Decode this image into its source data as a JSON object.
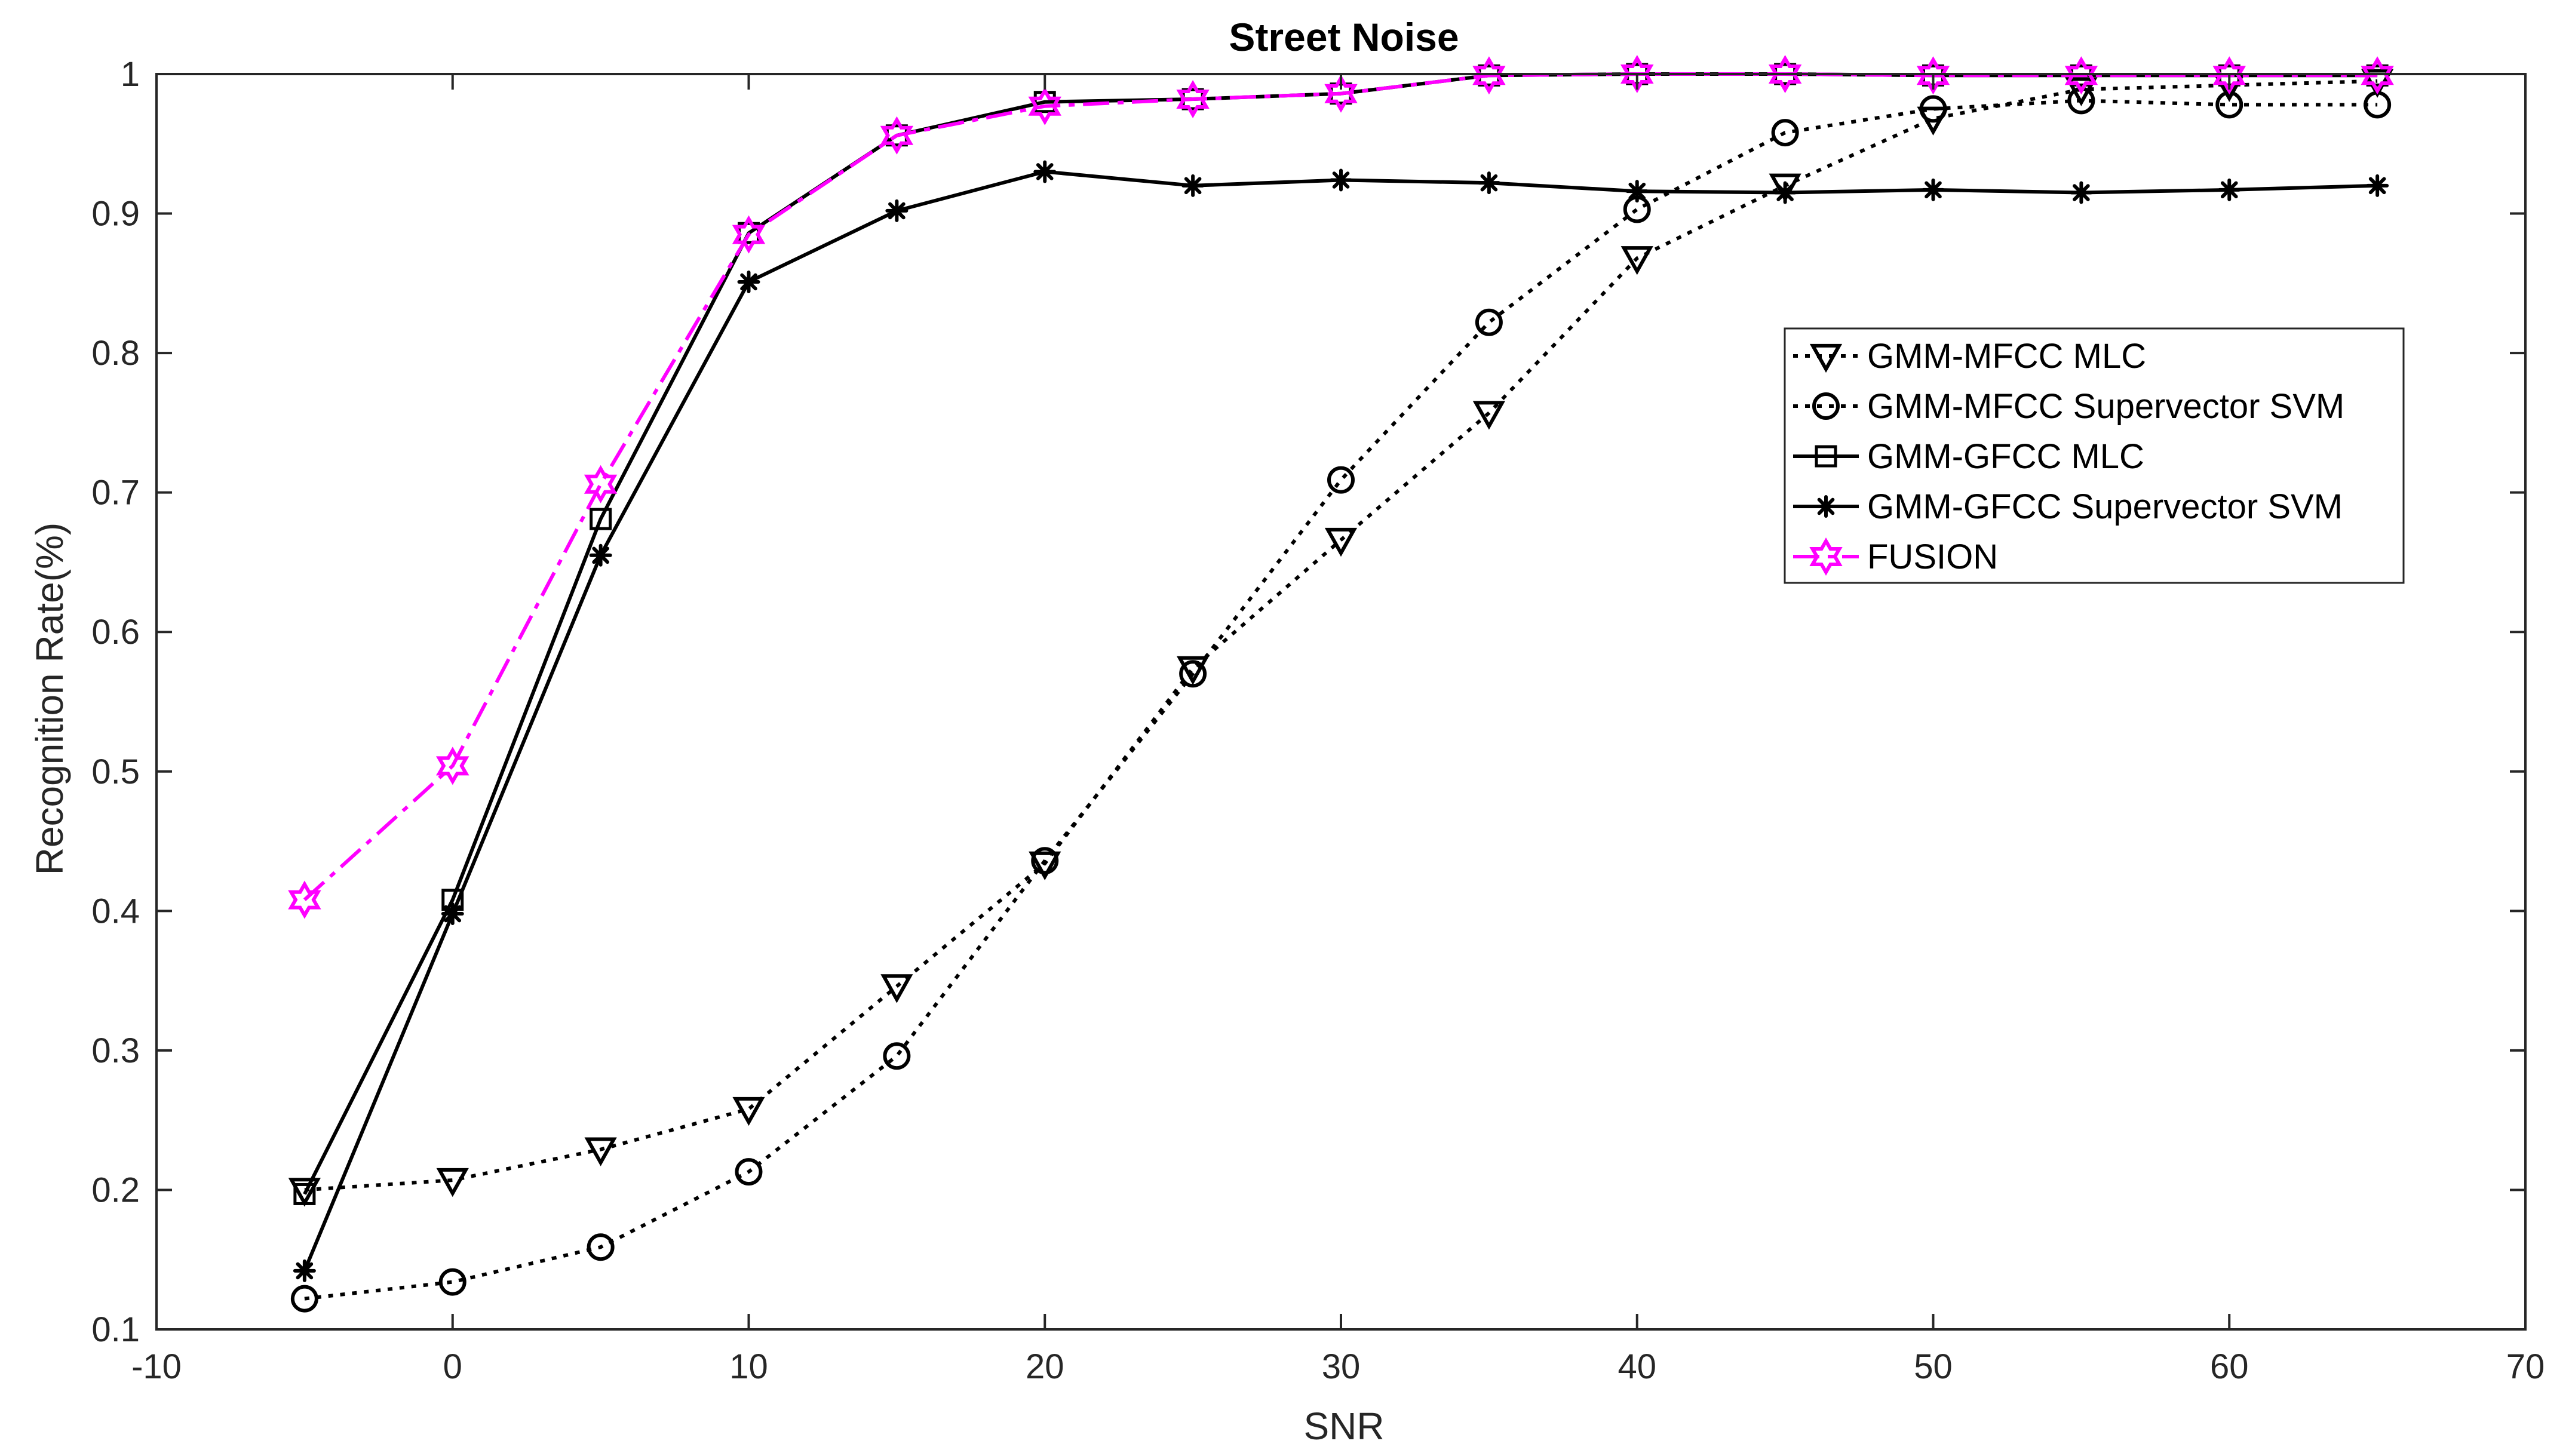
{
  "chart_data": {
    "type": "line",
    "title": "Street Noise",
    "xlabel": "SNR",
    "ylabel": "Recognition Rate(%)",
    "xlim": [
      -10,
      70
    ],
    "ylim": [
      0.1,
      1
    ],
    "xticks": [
      -10,
      0,
      10,
      20,
      30,
      40,
      50,
      60,
      70
    ],
    "yticks": [
      0.1,
      0.2,
      0.3,
      0.4,
      0.5,
      0.6,
      0.7,
      0.8,
      0.9,
      1
    ],
    "x": [
      -5,
      0,
      5,
      10,
      15,
      20,
      25,
      30,
      35,
      40,
      45,
      50,
      55,
      60,
      65
    ],
    "grid": false,
    "legend_position": "right",
    "series": [
      {
        "name": "GMM-MFCC MLC",
        "marker": "triangle-down",
        "line": "dotted",
        "color": "#000000",
        "values": [
          0.2,
          0.207,
          0.229,
          0.258,
          0.346,
          0.434,
          0.574,
          0.666,
          0.757,
          0.868,
          0.92,
          0.968,
          0.989,
          0.992,
          0.995
        ]
      },
      {
        "name": "GMM-MFCC Supervector SVM",
        "marker": "circle",
        "line": "dotted",
        "color": "#000000",
        "values": [
          0.122,
          0.134,
          0.159,
          0.213,
          0.296,
          0.436,
          0.57,
          0.709,
          0.822,
          0.903,
          0.958,
          0.975,
          0.981,
          0.978,
          0.978
        ]
      },
      {
        "name": "GMM-GFCC MLC",
        "marker": "square",
        "line": "solid",
        "color": "#000000",
        "values": [
          0.197,
          0.408,
          0.681,
          0.886,
          0.956,
          0.98,
          0.982,
          0.986,
          0.999,
          1.0,
          1.0,
          0.999,
          0.999,
          0.999,
          0.999
        ]
      },
      {
        "name": "GMM-GFCC Supervector SVM",
        "marker": "asterisk",
        "line": "solid",
        "color": "#000000",
        "values": [
          0.142,
          0.398,
          0.655,
          0.851,
          0.902,
          0.93,
          0.92,
          0.924,
          0.922,
          0.916,
          0.915,
          0.917,
          0.915,
          0.917,
          0.92
        ]
      },
      {
        "name": "FUSION",
        "marker": "hexagram",
        "line": "dashdot",
        "color": "#ff00ff",
        "values": [
          0.408,
          0.504,
          0.706,
          0.885,
          0.956,
          0.977,
          0.982,
          0.986,
          0.999,
          1.0,
          1.0,
          0.999,
          0.999,
          0.999,
          0.999
        ]
      }
    ]
  }
}
